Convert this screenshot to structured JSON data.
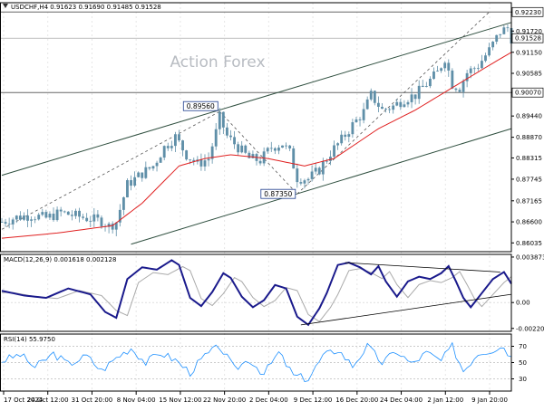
{
  "chart_data": {
    "type": "candlestick",
    "header": "USDCHF,H4  0.91623 0.91690 0.91485 0.91528",
    "watermark": "Action Forex",
    "colors": {
      "candle": "#5f8fa8",
      "ma": "#e02020",
      "channel": "#2f4f3f",
      "macd_line": "#1a1a8c",
      "signal_line": "#aaaaaa",
      "rsi_line": "#1e90ff",
      "grid": "#e6e6e6",
      "axis_text": "#000000"
    },
    "main": {
      "ylim": [
        0.858,
        0.9248
      ],
      "y_ticks": [
        "0.92230",
        "0.91720",
        "0.91150",
        "0.90585",
        "0.90070",
        "0.89440",
        "0.88870",
        "0.88315",
        "0.87745",
        "0.87165",
        "0.86600",
        "0.86035"
      ],
      "horizontal_lines": [
        0.9223,
        0.9007
      ],
      "last_price": 0.91528,
      "annotations": [
        {
          "label": "0.89560",
          "value": 0.8956,
          "index": 59
        },
        {
          "label": "0.87350",
          "value": 0.8735,
          "index": 80
        }
      ],
      "ma_anchors": [
        [
          0,
          0.8616
        ],
        [
          15,
          0.863
        ],
        [
          30,
          0.865
        ],
        [
          38,
          0.871
        ],
        [
          48,
          0.881
        ],
        [
          55,
          0.883
        ],
        [
          62,
          0.884
        ],
        [
          72,
          0.883
        ],
        [
          82,
          0.881
        ],
        [
          90,
          0.883
        ],
        [
          102,
          0.891
        ],
        [
          112,
          0.896
        ],
        [
          122,
          0.902
        ],
        [
          132,
          0.908
        ],
        [
          138,
          0.9115
        ]
      ],
      "channel_upper": [
        [
          0,
          0.8785
        ],
        [
          138,
          0.9195
        ]
      ],
      "channel_lower": [
        [
          35,
          0.86
        ],
        [
          138,
          0.891
        ]
      ],
      "candle_path": [
        [
          0,
          0.866
        ],
        [
          4,
          0.8672
        ],
        [
          8,
          0.8678
        ],
        [
          12,
          0.867
        ],
        [
          16,
          0.8685
        ],
        [
          20,
          0.8676
        ],
        [
          24,
          0.8668
        ],
        [
          27,
          0.8662
        ],
        [
          29,
          0.8648
        ],
        [
          31,
          0.866
        ],
        [
          34,
          0.876
        ],
        [
          38,
          0.879
        ],
        [
          41,
          0.881
        ],
        [
          44,
          0.886
        ],
        [
          47,
          0.8888
        ],
        [
          50,
          0.884
        ],
        [
          53,
          0.8815
        ],
        [
          56,
          0.883
        ],
        [
          58,
          0.89
        ],
        [
          59,
          0.894
        ],
        [
          61,
          0.889
        ],
        [
          64,
          0.886
        ],
        [
          67,
          0.883
        ],
        [
          70,
          0.8825
        ],
        [
          73,
          0.886
        ],
        [
          76,
          0.887
        ],
        [
          78,
          0.8845
        ],
        [
          80,
          0.8778
        ],
        [
          83,
          0.8775
        ],
        [
          86,
          0.88
        ],
        [
          89,
          0.8845
        ],
        [
          92,
          0.888
        ],
        [
          95,
          0.892
        ],
        [
          98,
          0.8955
        ],
        [
          100,
          0.9
        ],
        [
          103,
          0.896
        ],
        [
          106,
          0.897
        ],
        [
          109,
          0.899
        ],
        [
          112,
          0.9
        ],
        [
          115,
          0.903
        ],
        [
          118,
          0.906
        ],
        [
          120,
          0.91
        ],
        [
          122,
          0.903
        ],
        [
          124,
          0.902
        ],
        [
          126,
          0.906
        ],
        [
          129,
          0.908
        ],
        [
          132,
          0.912
        ],
        [
          135,
          0.917
        ],
        [
          137,
          0.918
        ],
        [
          138,
          0.9153
        ]
      ]
    },
    "macd": {
      "label": "MACD(12,26,9) 0.001618 0.002128",
      "ylim": [
        -0.00245,
        0.0041
      ],
      "y_ticks": [
        "0.003873",
        "0.00",
        "-0.002201"
      ],
      "zero": 0,
      "macd_anchors": [
        [
          0,
          0.001
        ],
        [
          6,
          0.0006
        ],
        [
          12,
          0.0004
        ],
        [
          18,
          0.0012
        ],
        [
          24,
          0.0007
        ],
        [
          28,
          -0.0008
        ],
        [
          31,
          -0.0013
        ],
        [
          34,
          0.002
        ],
        [
          38,
          0.003
        ],
        [
          42,
          0.0028
        ],
        [
          46,
          0.0036
        ],
        [
          48,
          0.0032
        ],
        [
          51,
          0.0004
        ],
        [
          54,
          -0.0003
        ],
        [
          57,
          0.0009
        ],
        [
          60,
          0.0025
        ],
        [
          62,
          0.0021
        ],
        [
          65,
          0.0005
        ],
        [
          68,
          -0.0004
        ],
        [
          71,
          0.0002
        ],
        [
          74,
          0.0015
        ],
        [
          77,
          0.0012
        ],
        [
          80,
          -0.0012
        ],
        [
          83,
          -0.0019
        ],
        [
          86,
          -0.0005
        ],
        [
          88,
          0.0008
        ],
        [
          91,
          0.0032
        ],
        [
          94,
          0.0034
        ],
        [
          97,
          0.003
        ],
        [
          100,
          0.0024
        ],
        [
          102,
          0.0031
        ],
        [
          104,
          0.0018
        ],
        [
          107,
          0.0005
        ],
        [
          110,
          0.0018
        ],
        [
          113,
          0.0022
        ],
        [
          116,
          0.002
        ],
        [
          119,
          0.0025
        ],
        [
          121,
          0.0031
        ],
        [
          123,
          0.0018
        ],
        [
          125,
          0.0004
        ],
        [
          127,
          -0.0004
        ],
        [
          130,
          0.0008
        ],
        [
          133,
          0.002
        ],
        [
          136,
          0.0026
        ],
        [
          138,
          0.0016
        ]
      ],
      "lines": [
        [
          [
            93,
            0.0034
          ],
          [
            135,
            0.0026
          ]
        ],
        [
          [
            81,
            -0.0019
          ],
          [
            138,
            0.0007
          ]
        ]
      ]
    },
    "rsi": {
      "label": "RSI(14) 55.9750",
      "ylim": [
        15,
        85
      ],
      "y_ticks": [
        "70",
        "50",
        "30"
      ],
      "anchors": [
        [
          0,
          52
        ],
        [
          5,
          60
        ],
        [
          9,
          44
        ],
        [
          14,
          61
        ],
        [
          18,
          48
        ],
        [
          23,
          58
        ],
        [
          27,
          40
        ],
        [
          31,
          56
        ],
        [
          35,
          68
        ],
        [
          39,
          50
        ],
        [
          43,
          62
        ],
        [
          47,
          53
        ],
        [
          51,
          38
        ],
        [
          55,
          58
        ],
        [
          59,
          70
        ],
        [
          63,
          42
        ],
        [
          67,
          54
        ],
        [
          71,
          36
        ],
        [
          75,
          62
        ],
        [
          79,
          34
        ],
        [
          83,
          30
        ],
        [
          87,
          58
        ],
        [
          91,
          66
        ],
        [
          95,
          46
        ],
        [
          99,
          70
        ],
        [
          103,
          50
        ],
        [
          107,
          64
        ],
        [
          111,
          48
        ],
        [
          115,
          62
        ],
        [
          119,
          52
        ],
        [
          122,
          70
        ],
        [
          125,
          40
        ],
        [
          129,
          62
        ],
        [
          133,
          66
        ],
        [
          136,
          70
        ],
        [
          138,
          56
        ]
      ]
    },
    "x_labels": [
      "17 Oct 2024",
      "24 Oct 12:00",
      "31 Oct 20:00",
      "8 Nov 04:00",
      "15 Nov 12:00",
      "22 Nov 20:00",
      "2 Dec 04:00",
      "9 Dec 12:00",
      "16 Dec 20:00",
      "24 Dec 04:00",
      "2 Jan 12:00",
      "9 Jan 20:00"
    ],
    "candle_count": 139
  }
}
